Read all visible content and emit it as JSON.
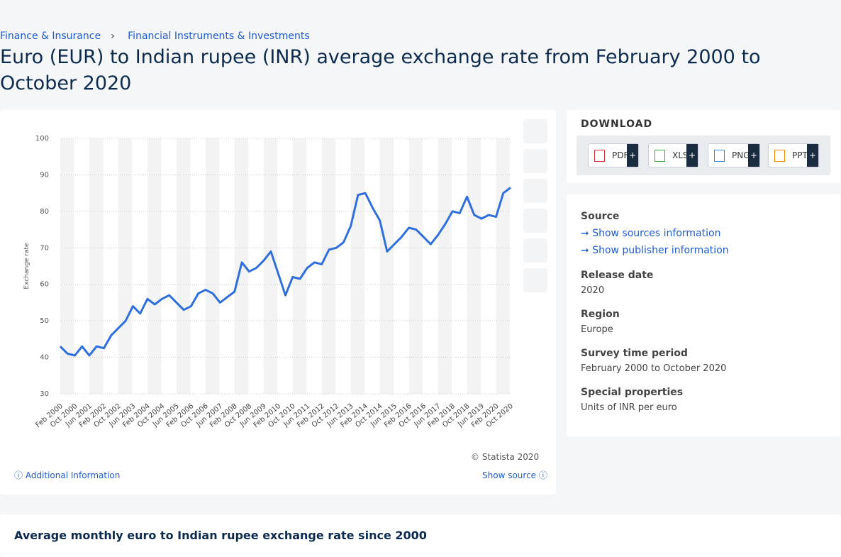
{
  "breadcrumb": [
    "Finance & Insurance",
    "Financial Instruments & Investments"
  ],
  "title": "Euro (EUR) to Indian rupee (INR) average exchange rate from February 2000 to October 2020",
  "chart_data": {
    "type": "line",
    "y_label": "Exchange rate",
    "categories": [
      "Feb 2000",
      null,
      "Oct 2000",
      null,
      "Jun 2001",
      null,
      "Feb 2002",
      null,
      "Oct 2002",
      null,
      "Jun 2003",
      null,
      "Feb 2004",
      null,
      "Oct 2004",
      null,
      "Jun 2005",
      null,
      "Feb 2006",
      null,
      "Oct 2006",
      null,
      "Jun 2007",
      null,
      "Feb 2008",
      null,
      "Oct 2008",
      null,
      "Jun 2009",
      null,
      "Feb 2010",
      null,
      "Oct 2010",
      null,
      "Jun 2011",
      null,
      "Feb 2012",
      null,
      "Oct 2012",
      null,
      "Jun 2013",
      null,
      "Feb 2014",
      null,
      "Oct 2014",
      null,
      "Jun 2015",
      null,
      "Feb 2016",
      null,
      "Oct 2016",
      null,
      "Jun 2017",
      null,
      "Feb 2018",
      null,
      "Oct 2018",
      null,
      "Jun 2019",
      null,
      "Feb 2020",
      null,
      "Oct 2020"
    ],
    "series": [
      {
        "name": "Exchange rate",
        "color": "#2f6fdb",
        "values": [
          43,
          41,
          40.5,
          43,
          40.5,
          43,
          42.5,
          46,
          48,
          50,
          54,
          52,
          56,
          54.5,
          56,
          57,
          55,
          53,
          54,
          57.5,
          58.5,
          57.5,
          55,
          56.5,
          58,
          66,
          63.5,
          64.5,
          66.5,
          69,
          63,
          57,
          62,
          61.5,
          64.5,
          66,
          65.5,
          69.5,
          70,
          71.5,
          76,
          84.5,
          85,
          81,
          77.5,
          69,
          71,
          73,
          75.5,
          75,
          73,
          71,
          73.5,
          76.5,
          80,
          79.5,
          84,
          79,
          78,
          79,
          78.5,
          85,
          86.5
        ]
      }
    ],
    "ylim": [
      30,
      100
    ],
    "yticks": [
      30,
      40,
      50,
      60,
      70,
      80,
      90,
      100
    ],
    "grid": true
  },
  "copyright": "© Statista 2020",
  "additional": "Additional Information",
  "show_source": "Show source",
  "download": {
    "title": "DOWNLOAD",
    "buttons": [
      "PDF",
      "XLS",
      "PNG",
      "PPT"
    ]
  },
  "info": {
    "source_label": "Source",
    "links": [
      "Show sources information",
      "Show publisher information"
    ],
    "fields": [
      {
        "label": "Release date",
        "value": "2020"
      },
      {
        "label": "Region",
        "value": "Europe"
      },
      {
        "label": "Survey time period",
        "value": "February 2000 to October 2020"
      },
      {
        "label": "Special properties",
        "value": "Units of INR per euro"
      }
    ]
  },
  "bottom_heading": "Average monthly euro to Indian rupee exchange rate since 2000"
}
